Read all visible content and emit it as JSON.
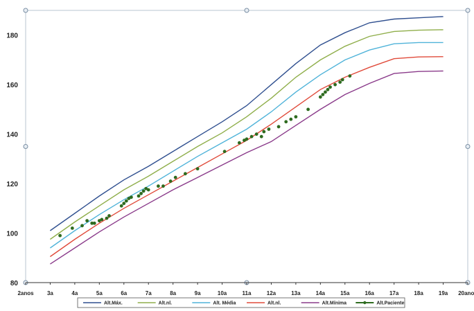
{
  "chart_data": {
    "type": "line",
    "title": "",
    "xlabel": "",
    "ylabel": "",
    "ylim": [
      80,
      190
    ],
    "yticks": [
      80,
      100,
      120,
      140,
      160,
      180
    ],
    "xlim": [
      2,
      20
    ],
    "grid": false,
    "legend_position": "bottom",
    "x_tick_labels": [
      {
        "x": 2,
        "label": "2anos"
      },
      {
        "x": 3,
        "label": "3a"
      },
      {
        "x": 4,
        "label": "4a"
      },
      {
        "x": 5,
        "label": "5a"
      },
      {
        "x": 6,
        "label": "6a"
      },
      {
        "x": 7,
        "label": "7a"
      },
      {
        "x": 8,
        "label": "8a"
      },
      {
        "x": 9,
        "label": "9a"
      },
      {
        "x": 10,
        "label": "10a"
      },
      {
        "x": 11,
        "label": "11a"
      },
      {
        "x": 12,
        "label": "12a"
      },
      {
        "x": 13,
        "label": "13a"
      },
      {
        "x": 14,
        "label": "14a"
      },
      {
        "x": 15,
        "label": "15a"
      },
      {
        "x": 16,
        "label": "16a"
      },
      {
        "x": 17,
        "label": "17a"
      },
      {
        "x": 18,
        "label": "18a"
      },
      {
        "x": 19,
        "label": "19a"
      },
      {
        "x": 20,
        "label": "20anos"
      }
    ],
    "series": [
      {
        "name": "Alt.Máx.",
        "color": "#2f4f8f",
        "marker": false,
        "x": [
          3,
          4,
          5,
          6,
          7,
          8,
          9,
          10,
          11,
          12,
          13,
          14,
          15,
          16,
          17,
          18,
          19
        ],
        "y": [
          101,
          108,
          115,
          121.5,
          127,
          133,
          139,
          145,
          151.5,
          160,
          168.5,
          176,
          181,
          185,
          186.5,
          187,
          187.5
        ]
      },
      {
        "name": "Alt.nl.",
        "color": "#8fae4a",
        "marker": false,
        "x": [
          3,
          4,
          5,
          6,
          7,
          8,
          9,
          10,
          11,
          12,
          13,
          14,
          15,
          16,
          17,
          18,
          19
        ],
        "y": [
          97.5,
          104.5,
          111,
          117.5,
          123,
          129,
          135,
          140.5,
          147,
          154.5,
          163,
          170,
          175.5,
          179.5,
          181.5,
          182,
          182.2
        ]
      },
      {
        "name": "Alt. Média",
        "color": "#4fb3d9",
        "marker": false,
        "x": [
          3,
          4,
          5,
          6,
          7,
          8,
          9,
          10,
          11,
          12,
          13,
          14,
          15,
          16,
          17,
          18,
          19
        ],
        "y": [
          94,
          101,
          107.5,
          113.5,
          119,
          125,
          131,
          136.5,
          142,
          149,
          157,
          164,
          170,
          174,
          176.5,
          177,
          177
        ]
      },
      {
        "name": "Alt.nl.",
        "color": "#e04a3a",
        "marker": false,
        "x": [
          3,
          4,
          5,
          6,
          7,
          8,
          9,
          10,
          11,
          12,
          13,
          14,
          15,
          16,
          17,
          18,
          19
        ],
        "y": [
          90.5,
          97.5,
          104,
          110,
          115.5,
          121,
          126.5,
          132,
          137.5,
          144,
          151,
          158,
          163,
          167,
          170.5,
          171.2,
          171.3
        ]
      },
      {
        "name": "Alt.Mínima",
        "color": "#8a3a8a",
        "marker": false,
        "x": [
          3,
          4,
          5,
          6,
          7,
          8,
          9,
          10,
          11,
          12,
          13,
          14,
          15,
          16,
          17,
          18,
          19
        ],
        "y": [
          87.5,
          94,
          100.5,
          106.5,
          112,
          117.5,
          122.5,
          127.5,
          132.5,
          137,
          143.5,
          150,
          156,
          160.5,
          164.5,
          165.3,
          165.5
        ]
      },
      {
        "name": "Alt.Paciente",
        "color": "#2e6b1f",
        "marker": true,
        "x": [
          3.4,
          3.9,
          4.3,
          4.5,
          4.7,
          4.8,
          5.0,
          5.1,
          5.3,
          5.4,
          5.9,
          6.0,
          6.1,
          6.2,
          6.3,
          6.6,
          6.7,
          6.8,
          6.9,
          7.0,
          7.4,
          7.6,
          7.9,
          8.1,
          8.5,
          9.0,
          10.1,
          10.7,
          10.9,
          11.0,
          11.2,
          11.4,
          11.6,
          11.7,
          11.9,
          12.3,
          12.6,
          12.8,
          13.0,
          13.5,
          14.0,
          14.1,
          14.2,
          14.3,
          14.4,
          14.6,
          14.8,
          14.9,
          15.2
        ],
        "y": [
          99,
          102,
          103,
          105,
          104,
          104,
          105,
          105.5,
          106,
          107,
          111,
          112,
          113,
          114,
          114.5,
          115,
          116,
          117,
          118,
          117.5,
          119,
          119,
          121,
          122.5,
          124,
          126,
          133,
          136.5,
          137.5,
          138,
          139,
          140,
          139,
          141,
          142,
          143,
          145,
          146,
          147,
          150,
          155,
          156,
          157,
          158,
          159,
          160,
          161,
          162,
          163.5
        ]
      }
    ]
  }
}
